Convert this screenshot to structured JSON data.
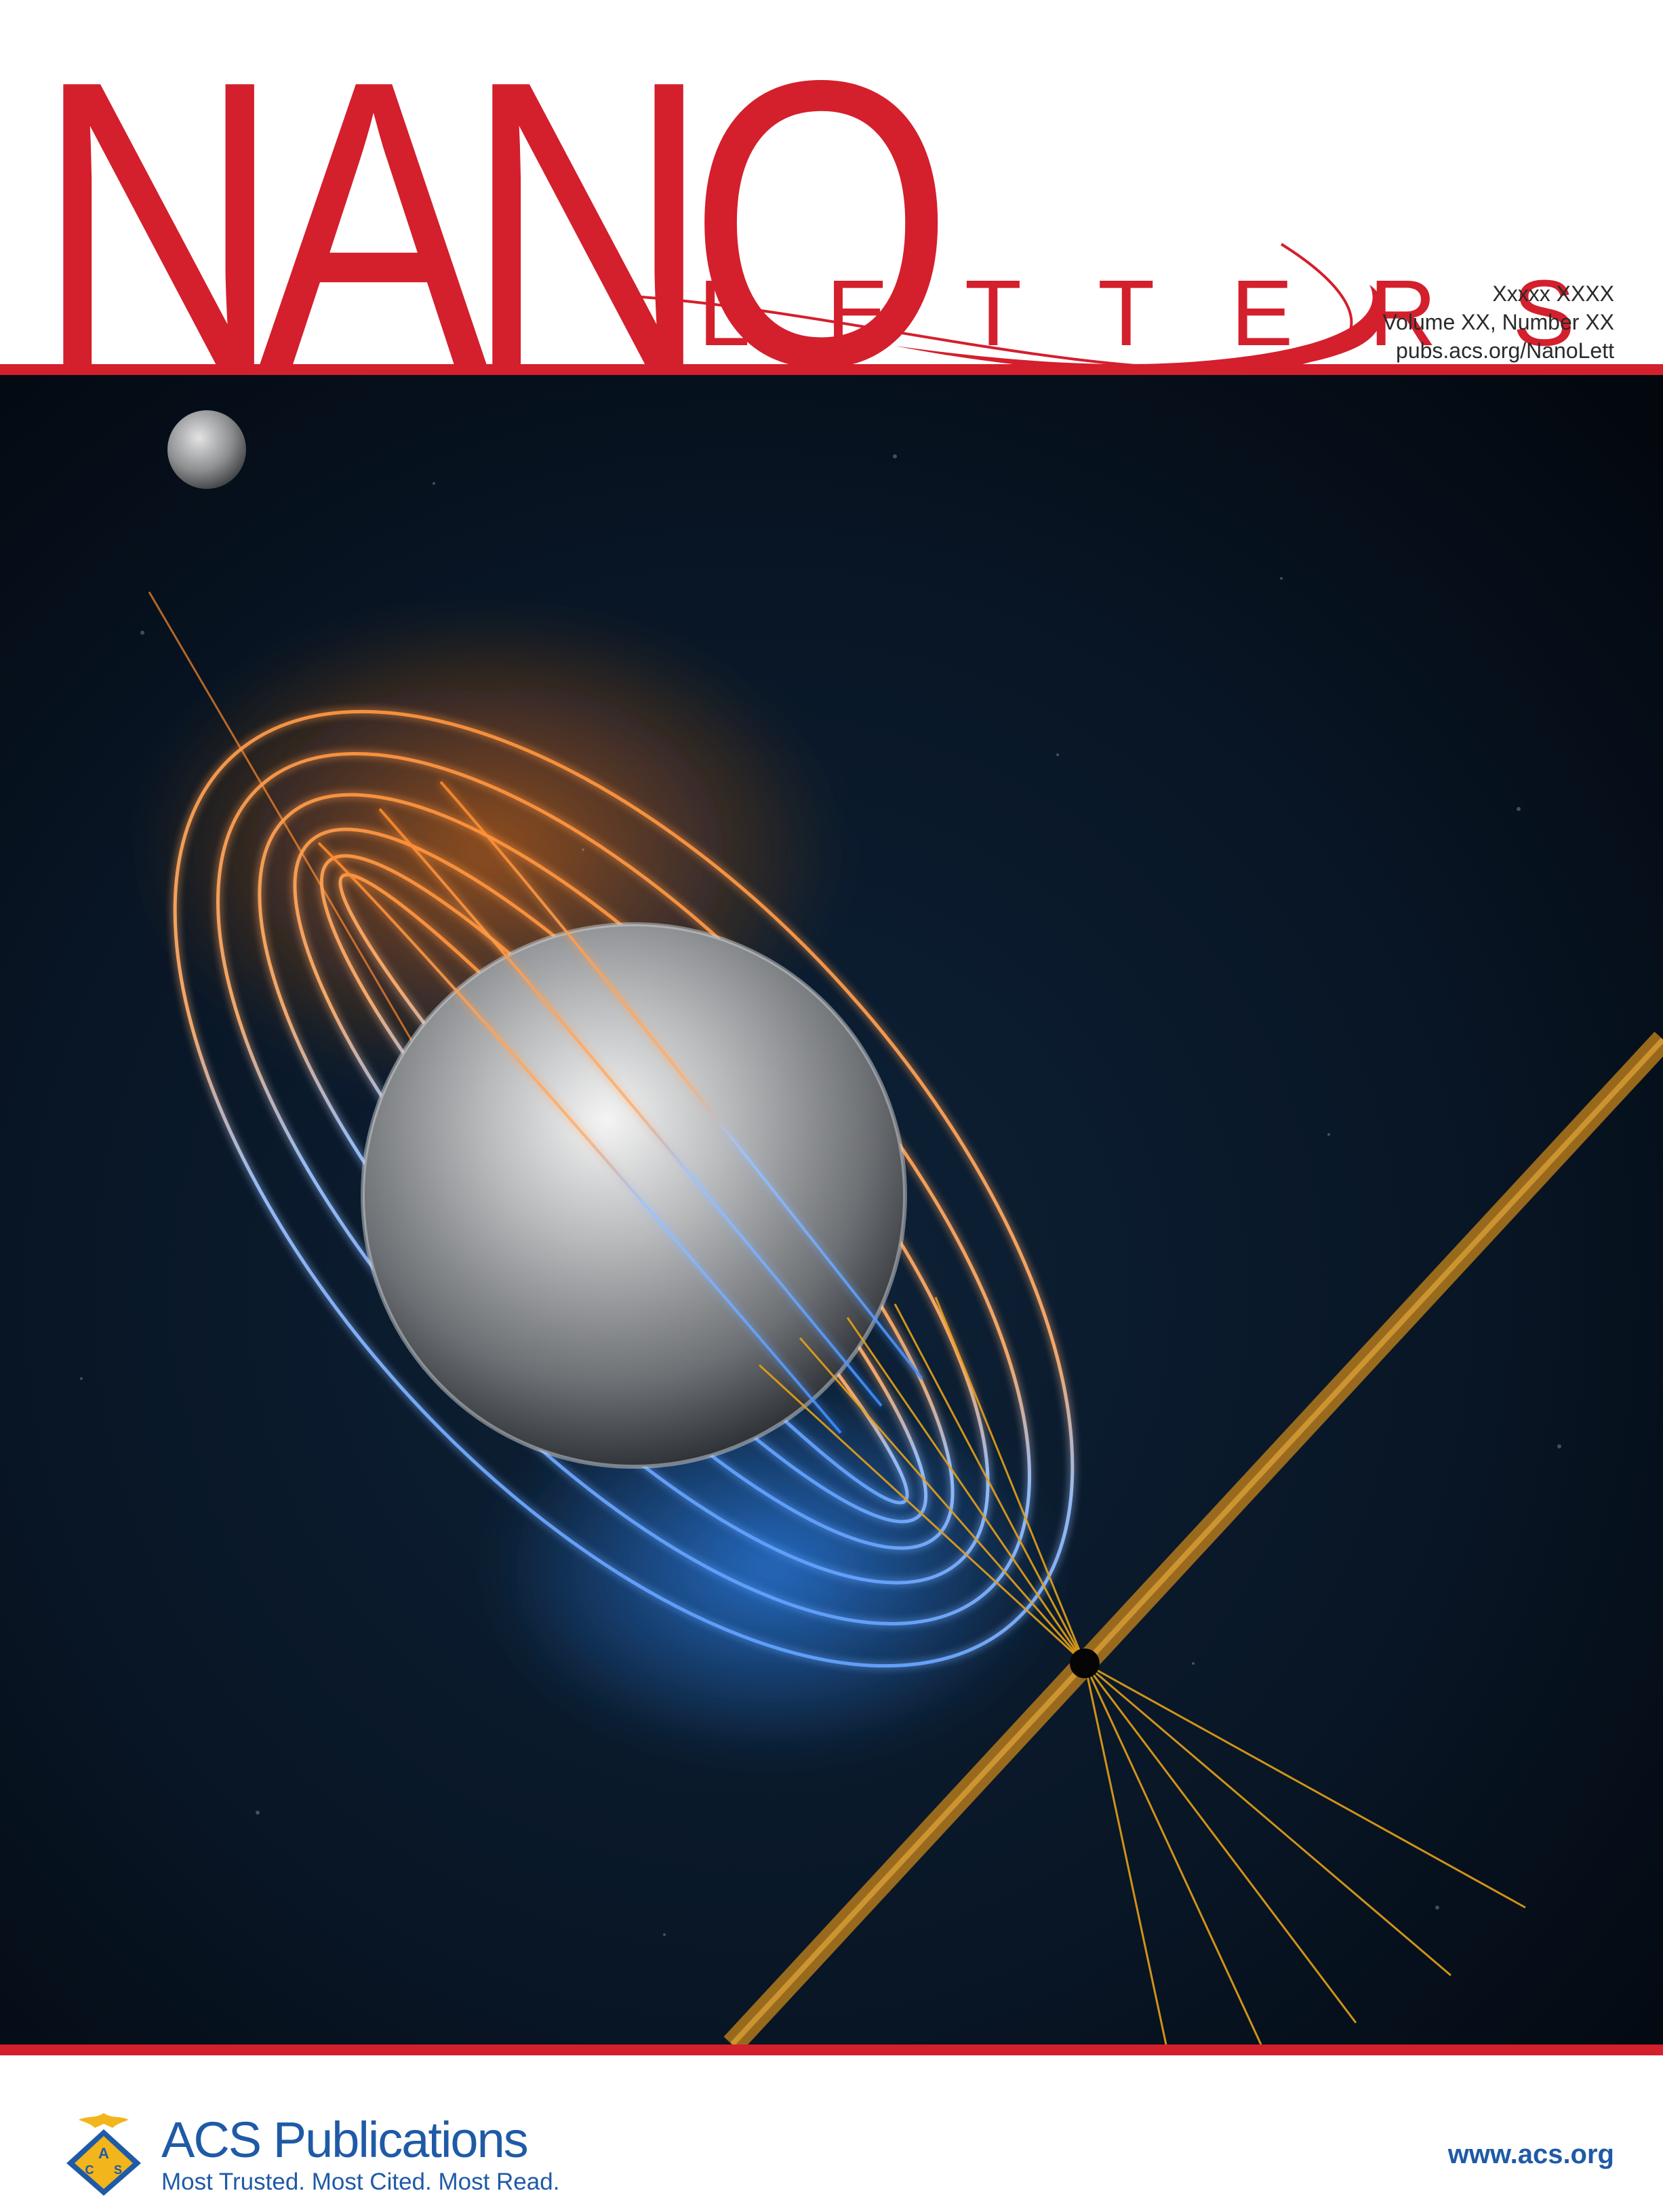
{
  "masthead": {
    "title_primary": "NANO",
    "title_secondary": "LETTERS",
    "issue_date": "Xxxxx XXXX",
    "volume_number": "Volume XX, Number XX",
    "journal_url": "pubs.acs.org/NanoLett"
  },
  "cover_art": {
    "subject": "magnetic-field-lines-around-sphere-illustration"
  },
  "footer": {
    "publisher_name": "ACS Publications",
    "publisher_tagline": "Most Trusted. Most Cited. Most Read.",
    "logo_letters": [
      "A",
      "C",
      "S"
    ],
    "website": "www.acs.org"
  },
  "colors": {
    "brand_red": "#d41f2c",
    "acs_blue": "#1f5aa6",
    "acs_gold": "#f2b51c",
    "background_space": "#06101c",
    "field_orange": "#ff8a2a",
    "field_blue": "#3d8dff",
    "beam_gold": "#e6a117"
  }
}
